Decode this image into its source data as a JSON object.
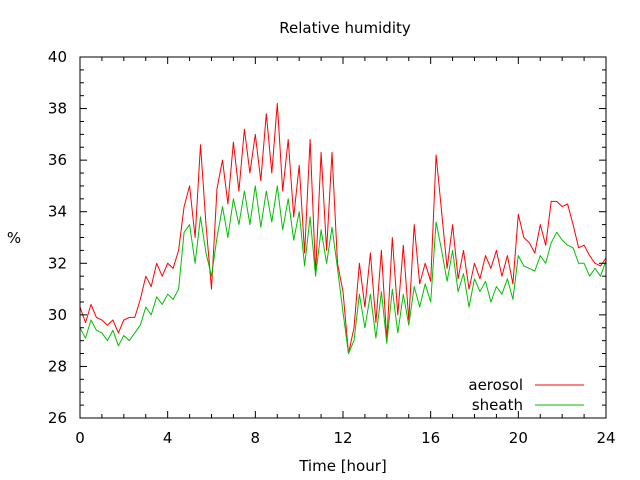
{
  "chart_data": {
    "type": "line",
    "title": "Relative humidity",
    "xlabel": "Time [hour]",
    "ylabel": "%",
    "xlim": [
      0,
      24
    ],
    "ylim": [
      26,
      40
    ],
    "xticks": [
      0,
      4,
      8,
      12,
      16,
      20,
      24
    ],
    "yticks": [
      26,
      28,
      30,
      32,
      34,
      36,
      38,
      40
    ],
    "xtick_labels": [
      "0",
      "4",
      "8",
      "12",
      "16",
      "20",
      "24"
    ],
    "ytick_labels": [
      "26",
      "28",
      "30",
      "32",
      "34",
      "36",
      "38",
      "40"
    ],
    "grid": false,
    "legend_position": "bottom-right",
    "series": [
      {
        "name": "aerosol",
        "color": "#ff0000",
        "x": [
          0.0,
          0.25,
          0.5,
          0.75,
          1.0,
          1.25,
          1.5,
          1.75,
          2.0,
          2.25,
          2.5,
          2.75,
          3.0,
          3.25,
          3.5,
          3.75,
          4.0,
          4.25,
          4.5,
          4.75,
          5.0,
          5.25,
          5.5,
          5.75,
          6.0,
          6.25,
          6.5,
          6.75,
          7.0,
          7.25,
          7.5,
          7.75,
          8.0,
          8.25,
          8.5,
          8.75,
          9.0,
          9.25,
          9.5,
          9.75,
          10.0,
          10.25,
          10.5,
          10.75,
          11.0,
          11.25,
          11.5,
          11.75,
          12.0,
          12.25,
          12.5,
          12.75,
          13.0,
          13.25,
          13.5,
          13.75,
          14.0,
          14.25,
          14.5,
          14.75,
          15.0,
          15.25,
          15.5,
          15.75,
          16.0,
          16.25,
          16.5,
          16.75,
          17.0,
          17.25,
          17.5,
          17.75,
          18.0,
          18.25,
          18.5,
          18.75,
          19.0,
          19.25,
          19.5,
          19.75,
          20.0,
          20.25,
          20.5,
          20.75,
          21.0,
          21.25,
          21.5,
          21.75,
          22.0,
          22.25,
          22.5,
          22.75,
          23.0,
          23.25,
          23.5,
          23.75,
          24.0
        ],
        "y": [
          30.3,
          29.7,
          30.4,
          29.9,
          29.8,
          29.6,
          29.8,
          29.3,
          29.8,
          29.9,
          29.9,
          30.6,
          31.5,
          31.1,
          32.0,
          31.5,
          32.0,
          31.8,
          32.5,
          34.2,
          35.0,
          33.0,
          36.6,
          33.5,
          31.0,
          34.9,
          36.0,
          34.3,
          36.7,
          34.8,
          37.2,
          35.5,
          37.0,
          35.2,
          37.8,
          35.5,
          38.2,
          34.8,
          36.8,
          33.8,
          35.8,
          32.4,
          36.8,
          31.6,
          36.3,
          32.5,
          36.3,
          32.0,
          30.9,
          28.5,
          29.5,
          32.0,
          30.3,
          32.4,
          29.7,
          32.5,
          29.0,
          33.0,
          30.0,
          32.7,
          29.8,
          33.5,
          31.2,
          32.0,
          31.3,
          36.2,
          34.0,
          31.8,
          33.5,
          31.4,
          32.5,
          31.0,
          32.0,
          31.4,
          32.3,
          31.8,
          32.5,
          31.5,
          32.3,
          31.2,
          33.9,
          33.0,
          32.8,
          32.4,
          33.5,
          32.7,
          34.4,
          34.4,
          34.2,
          34.3,
          33.5,
          32.6,
          32.7,
          32.3,
          32.0,
          31.9,
          32.2
        ]
      },
      {
        "name": "sheath",
        "color": "#00c000",
        "x": [
          0.0,
          0.25,
          0.5,
          0.75,
          1.0,
          1.25,
          1.5,
          1.75,
          2.0,
          2.25,
          2.5,
          2.75,
          3.0,
          3.25,
          3.5,
          3.75,
          4.0,
          4.25,
          4.5,
          4.75,
          5.0,
          5.25,
          5.5,
          5.75,
          6.0,
          6.25,
          6.5,
          6.75,
          7.0,
          7.25,
          7.5,
          7.75,
          8.0,
          8.25,
          8.5,
          8.75,
          9.0,
          9.25,
          9.5,
          9.75,
          10.0,
          10.25,
          10.5,
          10.75,
          11.0,
          11.25,
          11.5,
          11.75,
          12.0,
          12.25,
          12.5,
          12.75,
          13.0,
          13.25,
          13.5,
          13.75,
          14.0,
          14.25,
          14.5,
          14.75,
          15.0,
          15.25,
          15.5,
          15.75,
          16.0,
          16.25,
          16.5,
          16.75,
          17.0,
          17.25,
          17.5,
          17.75,
          18.0,
          18.25,
          18.5,
          18.75,
          19.0,
          19.25,
          19.5,
          19.75,
          20.0,
          20.25,
          20.5,
          20.75,
          21.0,
          21.25,
          21.5,
          21.75,
          22.0,
          22.25,
          22.5,
          22.75,
          23.0,
          23.25,
          23.5,
          23.75,
          24.0
        ],
        "y": [
          29.5,
          29.1,
          29.8,
          29.4,
          29.3,
          29.0,
          29.4,
          28.8,
          29.2,
          29.0,
          29.3,
          29.6,
          30.3,
          30.0,
          30.7,
          30.4,
          30.8,
          30.6,
          31.0,
          33.2,
          33.5,
          32.0,
          33.8,
          32.4,
          31.5,
          33.0,
          34.2,
          33.0,
          34.5,
          33.5,
          34.8,
          33.5,
          35.0,
          33.4,
          34.8,
          33.6,
          35.0,
          33.3,
          34.5,
          32.9,
          34.0,
          31.9,
          33.8,
          31.5,
          33.3,
          32.0,
          33.4,
          31.8,
          30.1,
          28.5,
          29.0,
          30.8,
          29.5,
          30.8,
          29.1,
          30.9,
          28.9,
          31.0,
          29.3,
          30.8,
          29.6,
          31.1,
          30.3,
          31.2,
          30.5,
          33.6,
          32.5,
          31.3,
          32.5,
          30.9,
          31.6,
          30.3,
          31.4,
          30.9,
          31.3,
          30.5,
          31.1,
          30.8,
          31.4,
          30.6,
          32.3,
          31.9,
          31.8,
          31.7,
          32.3,
          32.0,
          32.8,
          33.2,
          32.9,
          32.7,
          32.6,
          32.0,
          32.0,
          31.5,
          31.8,
          31.5,
          32.1
        ]
      }
    ]
  }
}
